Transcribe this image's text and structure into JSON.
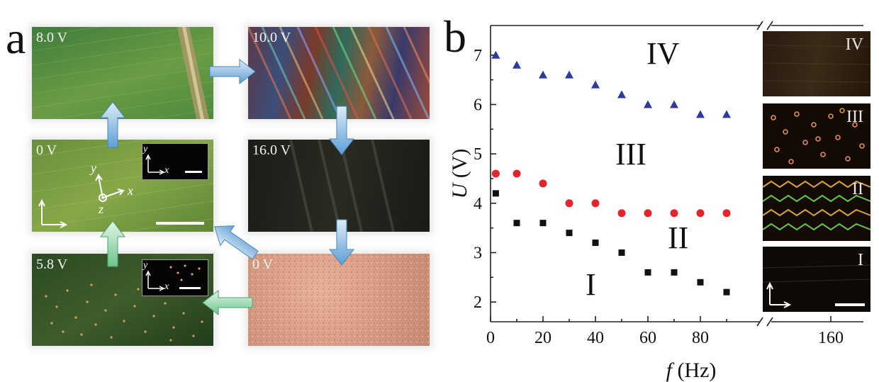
{
  "panel_a": {
    "letter": "a",
    "images": [
      {
        "id": "p8",
        "voltage": "8.0 V"
      },
      {
        "id": "p10",
        "voltage": "10.0 V"
      },
      {
        "id": "p0a",
        "voltage": "0 V"
      },
      {
        "id": "p16",
        "voltage": "16.0 V"
      },
      {
        "id": "p58",
        "voltage": "5.8 V"
      },
      {
        "id": "p0b",
        "voltage": "0 V"
      }
    ],
    "axes_labels": {
      "x": "x",
      "y": "y",
      "z": "z"
    },
    "colors": {
      "blue_arrow": "#7fb6e0",
      "green_arrow": "#8fd3a8"
    }
  },
  "panel_b": {
    "letter": "b",
    "region_labels": [
      "IV",
      "III",
      "II",
      "I"
    ],
    "strip_labels": [
      "IV",
      "III",
      "II",
      "I"
    ]
  },
  "chart_data": {
    "type": "scatter",
    "xlabel_italic": "f",
    "xlabel_unit": " (Hz)",
    "ylabel_italic": "U",
    "ylabel_unit": " (V)",
    "x_ticks": [
      "0",
      "20",
      "40",
      "60",
      "80",
      "160"
    ],
    "y_ticks": [
      "2",
      "3",
      "4",
      "5",
      "6",
      "7"
    ],
    "xlim": [
      0,
      100
    ],
    "ylim": [
      1.6,
      7.6
    ],
    "break_marker": "//",
    "series": [
      {
        "marker": "triangle",
        "color": "#2b3c9e",
        "x": [
          2,
          10,
          20,
          30,
          40,
          50,
          60,
          70,
          80,
          90
        ],
        "y": [
          7.0,
          6.8,
          6.6,
          6.6,
          6.4,
          6.2,
          6.0,
          6.0,
          5.8,
          5.8
        ]
      },
      {
        "marker": "circle",
        "color": "#e0252c",
        "x": [
          2,
          10,
          20,
          30,
          40,
          50,
          60,
          70,
          80,
          90
        ],
        "y": [
          4.6,
          4.6,
          4.4,
          4.0,
          4.0,
          3.8,
          3.8,
          3.8,
          3.8,
          3.8
        ]
      },
      {
        "marker": "square",
        "color": "#111111",
        "x": [
          2,
          10,
          20,
          30,
          40,
          50,
          60,
          70,
          80,
          90
        ],
        "y": [
          4.2,
          3.6,
          3.6,
          3.4,
          3.2,
          3.0,
          2.6,
          2.6,
          2.4,
          2.2
        ]
      }
    ]
  }
}
